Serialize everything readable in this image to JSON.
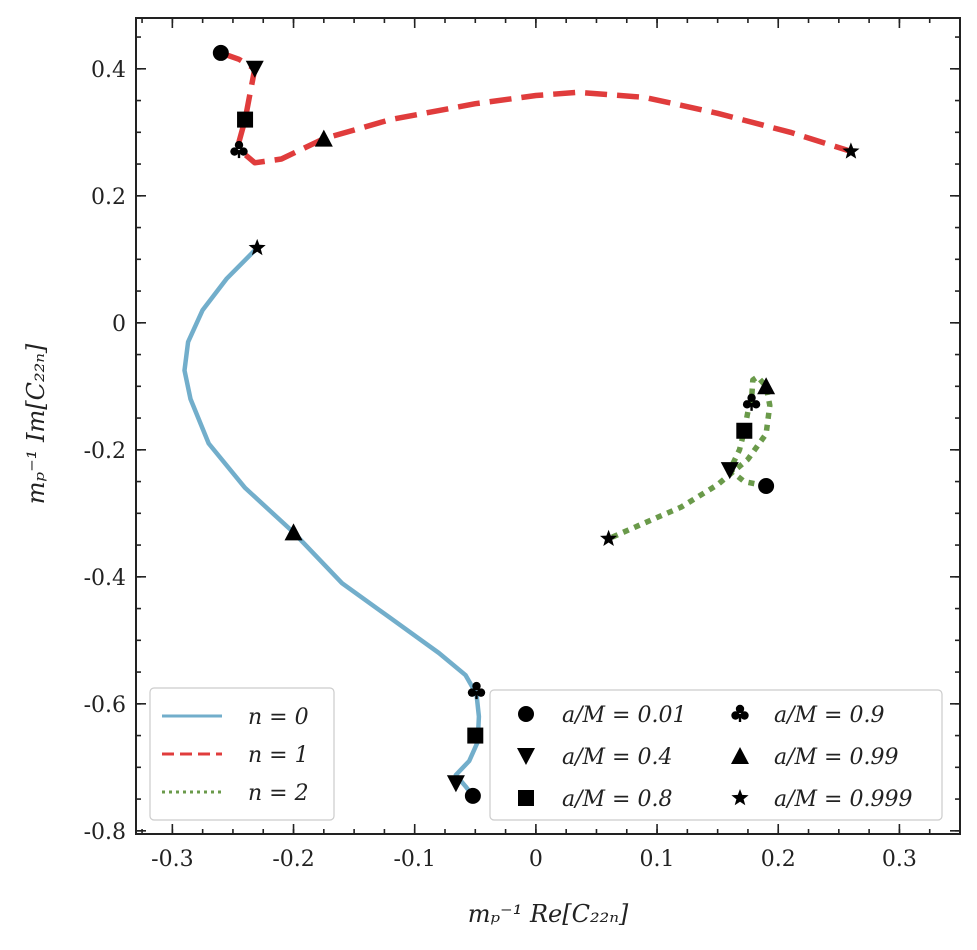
{
  "chart_data": {
    "type": "line",
    "xlabel": "m_p^{-1} Re[C_{22n}]",
    "ylabel": "m_p^{-1} Im[C_{22n}]",
    "xlabel_text": "mₚ⁻¹ Re[C₂₂ₙ]",
    "ylabel_text": "mₚ⁻¹ Im[C₂₂ₙ]",
    "xlim": [
      -0.33,
      0.35
    ],
    "ylim": [
      -0.805,
      0.48
    ],
    "x_ticks": [
      -0.3,
      -0.2,
      -0.1,
      0,
      0.1,
      0.2,
      0.3
    ],
    "x_tick_labels": [
      "-0.3",
      "-0.2",
      "-0.1",
      "0",
      "0.1",
      "0.2",
      "0.3"
    ],
    "y_ticks": [
      -0.8,
      -0.6,
      -0.4,
      -0.2,
      0,
      0.2,
      0.4
    ],
    "y_tick_labels": [
      "-0.8",
      "-0.6",
      "-0.4",
      "-0.2",
      "0",
      "0.2",
      "0.4"
    ],
    "grid": false,
    "series": [
      {
        "name": "n = 0",
        "legend_label": "n = 0",
        "color": "#72aecb",
        "dash": "solid",
        "points": [
          [
            -0.052,
            -0.745
          ],
          [
            -0.058,
            -0.73
          ],
          [
            -0.066,
            -0.712
          ],
          [
            -0.055,
            -0.69
          ],
          [
            -0.048,
            -0.66
          ],
          [
            -0.047,
            -0.62
          ],
          [
            -0.049,
            -0.585
          ],
          [
            -0.058,
            -0.555
          ],
          [
            -0.08,
            -0.52
          ],
          [
            -0.12,
            -0.465
          ],
          [
            -0.16,
            -0.41
          ],
          [
            -0.2,
            -0.33
          ],
          [
            -0.24,
            -0.26
          ],
          [
            -0.27,
            -0.19
          ],
          [
            -0.285,
            -0.12
          ],
          [
            -0.29,
            -0.075
          ],
          [
            -0.287,
            -0.03
          ],
          [
            -0.275,
            0.02
          ],
          [
            -0.255,
            0.07
          ],
          [
            -0.23,
            0.118
          ]
        ]
      },
      {
        "name": "n = 1",
        "legend_label": "n = 1",
        "color": "#e03c3c",
        "dash": "dashed",
        "points": [
          [
            -0.26,
            0.425
          ],
          [
            -0.245,
            0.415
          ],
          [
            -0.232,
            0.4
          ],
          [
            -0.236,
            0.36
          ],
          [
            -0.24,
            0.32
          ],
          [
            -0.245,
            0.285
          ],
          [
            -0.243,
            0.27
          ],
          [
            -0.232,
            0.252
          ],
          [
            -0.21,
            0.258
          ],
          [
            -0.175,
            0.29
          ],
          [
            -0.12,
            0.32
          ],
          [
            -0.05,
            0.345
          ],
          [
            0.0,
            0.358
          ],
          [
            0.035,
            0.363
          ],
          [
            0.09,
            0.355
          ],
          [
            0.15,
            0.33
          ],
          [
            0.21,
            0.3
          ],
          [
            0.26,
            0.27
          ]
        ]
      },
      {
        "name": "n = 2",
        "legend_label": "n = 2",
        "color": "#6a9a4a",
        "dash": "dotted",
        "points": [
          [
            0.19,
            -0.257
          ],
          [
            0.172,
            -0.25
          ],
          [
            0.16,
            -0.232
          ],
          [
            0.168,
            -0.2
          ],
          [
            0.172,
            -0.17
          ],
          [
            0.175,
            -0.14
          ],
          [
            0.178,
            -0.12
          ],
          [
            0.179,
            -0.09
          ],
          [
            0.183,
            -0.085
          ],
          [
            0.19,
            -0.1
          ],
          [
            0.193,
            -0.13
          ],
          [
            0.19,
            -0.175
          ],
          [
            0.175,
            -0.215
          ],
          [
            0.15,
            -0.255
          ],
          [
            0.12,
            -0.29
          ],
          [
            0.09,
            -0.315
          ],
          [
            0.06,
            -0.34
          ]
        ]
      }
    ],
    "marker_series": [
      {
        "label": "a/M = 0.01",
        "symbol": "circle",
        "points": [
          [
            -0.052,
            -0.745
          ],
          [
            -0.26,
            0.425
          ],
          [
            0.19,
            -0.257
          ]
        ]
      },
      {
        "label": "a/M = 0.4",
        "symbol": "triangle-down",
        "points": [
          [
            -0.066,
            -0.725
          ],
          [
            -0.232,
            0.4
          ],
          [
            0.16,
            -0.232
          ]
        ]
      },
      {
        "label": "a/M = 0.8",
        "symbol": "square",
        "points": [
          [
            -0.05,
            -0.65
          ],
          [
            -0.24,
            0.32
          ],
          [
            0.172,
            -0.17
          ]
        ]
      },
      {
        "label": "a/M = 0.9",
        "symbol": "club",
        "points": [
          [
            -0.049,
            -0.58
          ],
          [
            -0.245,
            0.272
          ],
          [
            0.178,
            -0.126
          ]
        ]
      },
      {
        "label": "a/M = 0.99",
        "symbol": "triangle-up",
        "points": [
          [
            -0.2,
            -0.33
          ],
          [
            -0.175,
            0.29
          ],
          [
            0.19,
            -0.1
          ]
        ]
      },
      {
        "label": "a/M = 0.999",
        "symbol": "star",
        "points": [
          [
            -0.23,
            0.118
          ],
          [
            0.26,
            0.27
          ],
          [
            0.06,
            -0.34
          ]
        ]
      }
    ],
    "legend_lines_position": "bottom-left",
    "legend_markers_position": "bottom-right"
  }
}
